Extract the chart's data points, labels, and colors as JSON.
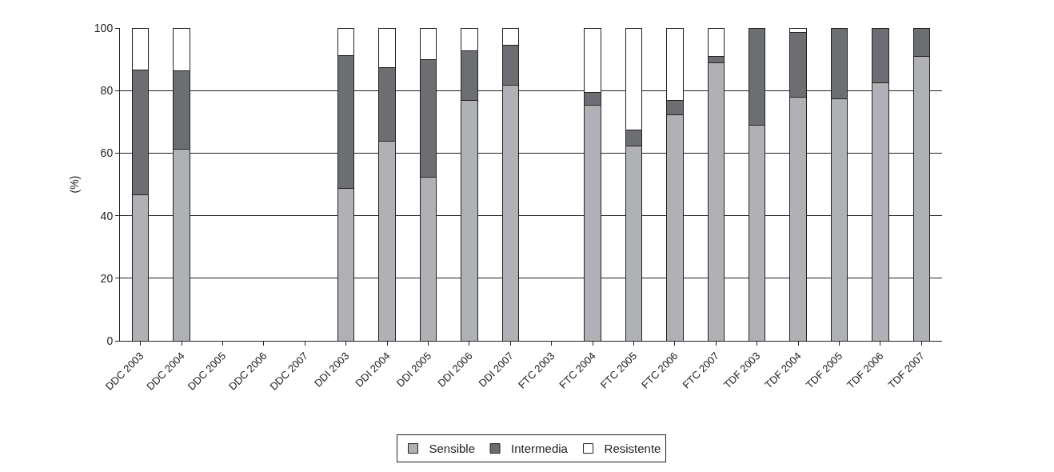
{
  "chart_data": {
    "type": "bar",
    "stacked": true,
    "ylabel": "(%)",
    "ylim": [
      0,
      100
    ],
    "yticks": [
      0,
      20,
      40,
      60,
      80,
      100
    ],
    "grid": "y",
    "legend": "bottom",
    "categories": [
      "DDC 2003",
      "DDC 2004",
      "DDC 2005",
      "DDC 2006",
      "DDC 2007",
      "DDI 2003",
      "DDI 2004",
      "DDI 2005",
      "DDI 2006",
      "DDI 2007",
      "FTC 2003",
      "FTC 2004",
      "FTC 2005",
      "FTC 2006",
      "FTC 2007",
      "TDF 2003",
      "TDF 2004",
      "TDF 2005",
      "TDF 2006",
      "TDF 2007"
    ],
    "series": [
      {
        "name": "Sensible",
        "color": "#b0b1b4",
        "values": [
          46.6,
          61.2,
          null,
          null,
          null,
          48.8,
          63.9,
          52.4,
          76.8,
          81.7,
          null,
          75.3,
          62.4,
          72.3,
          89.0,
          68.8,
          78.0,
          77.4,
          82.6,
          90.9
        ]
      },
      {
        "name": "Intermedia",
        "color": "#6d6e71",
        "values": [
          40.0,
          25.1,
          null,
          null,
          null,
          42.3,
          23.5,
          37.6,
          15.9,
          12.8,
          null,
          4.2,
          5.0,
          4.5,
          1.9,
          31.2,
          20.5,
          22.6,
          17.4,
          9.1
        ]
      },
      {
        "name": "Resistente",
        "color": "#ffffff",
        "values": [
          13.4,
          13.7,
          null,
          null,
          null,
          8.9,
          12.6,
          10.0,
          7.3,
          5.5,
          null,
          20.5,
          32.6,
          23.2,
          9.1,
          0,
          1.5,
          0,
          0,
          0
        ]
      }
    ]
  }
}
